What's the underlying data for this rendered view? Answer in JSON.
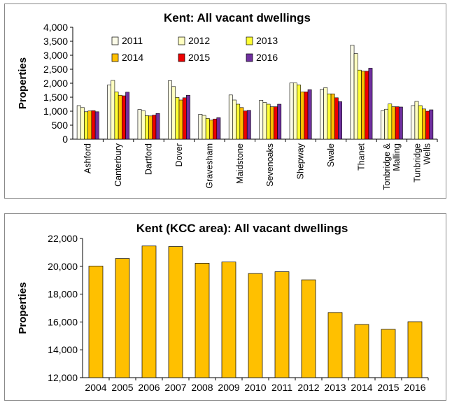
{
  "chart_data": [
    {
      "type": "bar",
      "title": "Kent: All vacant dwellings",
      "ylabel": "Properties",
      "xlabel": "",
      "ylim": [
        0,
        4000
      ],
      "yticks": [
        "0",
        "500",
        "1,000",
        "1,500",
        "2,000",
        "2,500",
        "3,000",
        "3,500",
        "4,000"
      ],
      "ytick_values": [
        0,
        500,
        1000,
        1500,
        2000,
        2500,
        3000,
        3500,
        4000
      ],
      "grid": false,
      "legend_position": "top",
      "categories": [
        [
          "Ashford"
        ],
        [
          "Canterbury"
        ],
        [
          "Dartford"
        ],
        [
          "Dover"
        ],
        [
          "Gravesham"
        ],
        [
          "Maidstone"
        ],
        [
          "Sevenoaks"
        ],
        [
          "Shepway"
        ],
        [
          "Swale"
        ],
        [
          "Thanet"
        ],
        [
          "Tonbridge &",
          "Malling"
        ],
        [
          "Tunbridge",
          "Wells"
        ]
      ],
      "series": [
        {
          "name": "2011",
          "color": "#fbfbe8",
          "values": [
            1200,
            1940,
            1060,
            2090,
            890,
            1580,
            1390,
            2010,
            1780,
            3360,
            1020,
            1200
          ]
        },
        {
          "name": "2012",
          "color": "#ffffc0",
          "values": [
            1130,
            2100,
            1020,
            1880,
            850,
            1400,
            1310,
            2010,
            1840,
            3060,
            1070,
            1350
          ]
        },
        {
          "name": "2013",
          "color": "#ffff33",
          "values": [
            980,
            1690,
            840,
            1490,
            740,
            1250,
            1250,
            1940,
            1620,
            2470,
            1260,
            1200
          ]
        },
        {
          "name": "2014",
          "color": "#ffc000",
          "values": [
            1010,
            1570,
            830,
            1400,
            680,
            1130,
            1160,
            1690,
            1620,
            2430,
            1160,
            1080
          ]
        },
        {
          "name": "2015",
          "color": "#ee0000",
          "values": [
            1020,
            1550,
            860,
            1480,
            720,
            1010,
            1160,
            1690,
            1480,
            2430,
            1160,
            1000
          ]
        },
        {
          "name": "2016",
          "color": "#7030a0",
          "values": [
            980,
            1680,
            920,
            1570,
            770,
            1030,
            1250,
            1770,
            1340,
            2540,
            1150,
            1050
          ]
        }
      ]
    },
    {
      "type": "bar",
      "title": "Kent (KCC area): All vacant dwellings",
      "ylabel": "Properties",
      "xlabel": "",
      "ylim": [
        12000,
        22000
      ],
      "yticks": [
        "12,000",
        "14,000",
        "16,000",
        "18,000",
        "20,000",
        "22,000"
      ],
      "ytick_values": [
        12000,
        14000,
        16000,
        18000,
        20000,
        22000
      ],
      "grid": false,
      "categories": [
        "2004",
        "2005",
        "2006",
        "2007",
        "2008",
        "2009",
        "2010",
        "2011",
        "2012",
        "2013",
        "2014",
        "2015",
        "2016"
      ],
      "color": "#ffc000",
      "values": [
        20020,
        20560,
        21460,
        21420,
        20220,
        20310,
        19480,
        19610,
        19030,
        16680,
        15820,
        15470,
        16020
      ]
    }
  ]
}
